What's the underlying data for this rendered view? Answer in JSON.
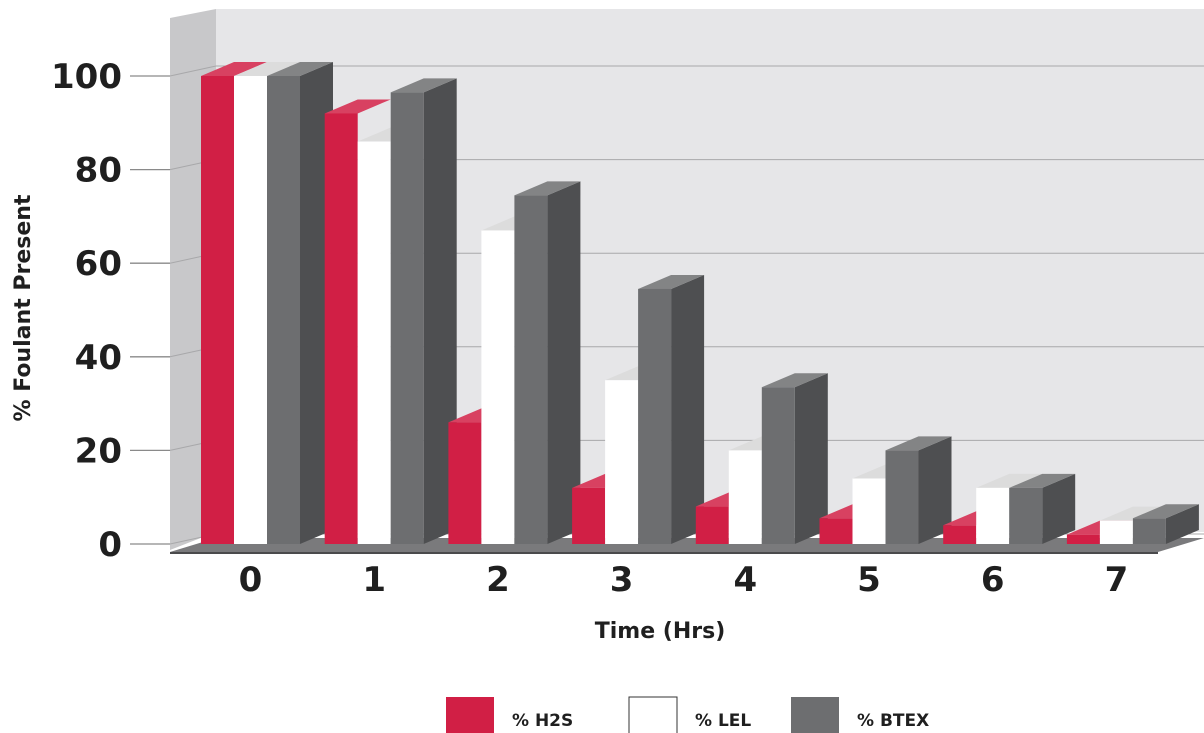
{
  "chart_data": {
    "type": "bar",
    "title": "",
    "xlabel": "Time (Hrs)",
    "ylabel": "% Foulant Present",
    "categories": [
      "0",
      "1",
      "2",
      "3",
      "4",
      "5",
      "6",
      "7"
    ],
    "yticks": [
      "0",
      "20",
      "40",
      "60",
      "80",
      "100"
    ],
    "ylim": [
      0,
      100
    ],
    "grid": true,
    "legend_position": "bottom",
    "three_d": true,
    "series": [
      {
        "name": "% H2S",
        "color": "#d11f45",
        "values": [
          100,
          92,
          26,
          12,
          8,
          5.5,
          4,
          2
        ]
      },
      {
        "name": "% LEL",
        "color": "#ffffff",
        "values": [
          100,
          86,
          67,
          35,
          20,
          14,
          12,
          5
        ]
      },
      {
        "name": "% BTEX",
        "color": "#6d6e70",
        "values": [
          100,
          96.5,
          74.5,
          54.5,
          33.5,
          20,
          12,
          5.5
        ]
      }
    ]
  }
}
